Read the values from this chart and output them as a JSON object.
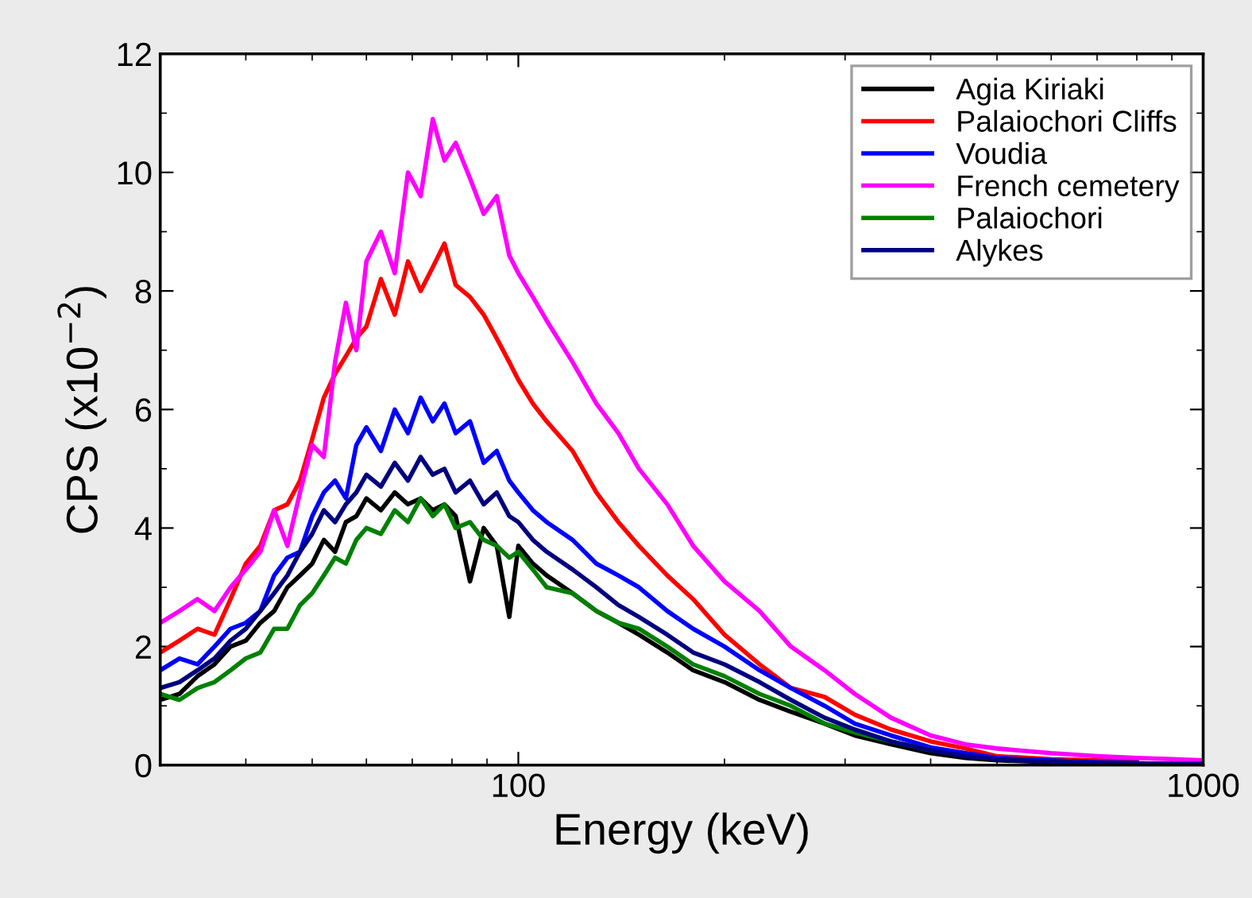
{
  "chart_data": {
    "type": "line",
    "xlabel": "Energy (keV)",
    "ylabel": "CPS (x10$^{−2}$)",
    "log": "x",
    "xlim": [
      30,
      1000
    ],
    "xticks": [
      100,
      1000
    ],
    "ylim": [
      0,
      12
    ],
    "yticks": [
      0,
      2,
      4,
      6,
      8,
      10,
      12
    ],
    "grid": false,
    "legend": "top right",
    "marker": "none",
    "line_style": "solid",
    "x": [
      30,
      32,
      34,
      36,
      38,
      40,
      42,
      44,
      46,
      48,
      50,
      52,
      54,
      56,
      58,
      60,
      63,
      66,
      69,
      72,
      75,
      78,
      81,
      85,
      89,
      93,
      97,
      100,
      105,
      110,
      120,
      130,
      140,
      150,
      165,
      180,
      200,
      225,
      250,
      280,
      310,
      350,
      400,
      450,
      500,
      600,
      700,
      800,
      900,
      1000
    ],
    "series": [
      {
        "name": "Agia Kiriaki",
        "color": "#000000",
        "values": [
          1.1,
          1.2,
          1.5,
          1.7,
          2.0,
          2.1,
          2.4,
          2.6,
          3.0,
          3.2,
          3.4,
          3.8,
          3.6,
          4.1,
          4.2,
          4.5,
          4.3,
          4.6,
          4.4,
          4.5,
          4.3,
          4.4,
          4.2,
          3.1,
          4.0,
          3.7,
          2.5,
          3.7,
          3.4,
          3.2,
          2.9,
          2.6,
          2.4,
          2.2,
          1.9,
          1.6,
          1.4,
          1.1,
          0.9,
          0.7,
          0.5,
          0.35,
          0.2,
          0.12,
          0.08,
          0.05,
          0.03,
          0.02,
          0.02,
          0.02
        ]
      },
      {
        "name": "Palaiochori Cliffs",
        "color": "#ff0000",
        "values": [
          1.9,
          2.1,
          2.3,
          2.2,
          2.8,
          3.4,
          3.7,
          4.3,
          4.4,
          4.8,
          5.5,
          6.2,
          6.6,
          6.9,
          7.2,
          7.4,
          8.2,
          7.6,
          8.5,
          8.0,
          8.4,
          8.8,
          8.1,
          7.9,
          7.6,
          7.2,
          6.8,
          6.5,
          6.1,
          5.8,
          5.3,
          4.6,
          4.1,
          3.7,
          3.2,
          2.8,
          2.2,
          1.7,
          1.3,
          1.15,
          0.85,
          0.6,
          0.4,
          0.28,
          0.15,
          0.1,
          0.08,
          0.06,
          null,
          null
        ]
      },
      {
        "name": "Voudia",
        "color": "#0000ff",
        "values": [
          1.6,
          1.8,
          1.7,
          2.0,
          2.3,
          2.4,
          2.6,
          3.2,
          3.5,
          3.6,
          4.2,
          4.6,
          4.8,
          4.5,
          5.4,
          5.7,
          5.3,
          6.0,
          5.6,
          6.2,
          5.8,
          6.1,
          5.6,
          5.8,
          5.1,
          5.3,
          4.8,
          4.6,
          4.3,
          4.1,
          3.8,
          3.4,
          3.2,
          3.0,
          2.6,
          2.3,
          2.0,
          1.6,
          1.3,
          1.0,
          0.7,
          0.5,
          0.3,
          0.2,
          0.12,
          0.08,
          0.05,
          0.04,
          null,
          null
        ]
      },
      {
        "name": "French cemetery",
        "color": "#ff00ff",
        "values": [
          2.4,
          2.6,
          2.8,
          2.6,
          3.0,
          3.3,
          3.6,
          4.3,
          3.7,
          4.6,
          5.4,
          5.2,
          6.8,
          7.8,
          7.0,
          8.5,
          9.0,
          8.3,
          10.0,
          9.6,
          10.9,
          10.2,
          10.5,
          9.9,
          9.3,
          9.6,
          8.6,
          8.3,
          7.9,
          7.5,
          6.8,
          6.1,
          5.6,
          5.0,
          4.4,
          3.7,
          3.1,
          2.6,
          2.0,
          1.6,
          1.2,
          0.8,
          0.5,
          0.35,
          0.28,
          0.2,
          0.15,
          0.12,
          0.1,
          0.08
        ]
      },
      {
        "name": "Palaiochori",
        "color": "#008000",
        "values": [
          1.2,
          1.1,
          1.3,
          1.4,
          1.6,
          1.8,
          1.9,
          2.3,
          2.3,
          2.7,
          2.9,
          3.2,
          3.5,
          3.4,
          3.8,
          4.0,
          3.9,
          4.3,
          4.1,
          4.5,
          4.2,
          4.4,
          4.0,
          4.1,
          3.8,
          3.7,
          3.5,
          3.6,
          3.3,
          3.0,
          2.9,
          2.6,
          2.4,
          2.3,
          2.0,
          1.7,
          1.5,
          1.2,
          1.0,
          0.7,
          0.55,
          0.4,
          0.25,
          null,
          null,
          null,
          null,
          null,
          null,
          null
        ]
      },
      {
        "name": "Alykes",
        "color": "#000080",
        "values": [
          1.3,
          1.4,
          1.6,
          1.8,
          2.1,
          2.3,
          2.6,
          2.9,
          3.2,
          3.6,
          3.9,
          4.3,
          4.1,
          4.4,
          4.6,
          4.9,
          4.7,
          5.1,
          4.8,
          5.2,
          4.9,
          5.0,
          4.6,
          4.8,
          4.4,
          4.6,
          4.2,
          4.1,
          3.8,
          3.6,
          3.3,
          3.0,
          2.7,
          2.5,
          2.2,
          1.9,
          1.7,
          1.4,
          1.1,
          0.8,
          0.6,
          0.4,
          0.25,
          0.15,
          0.1,
          0.06,
          0.04,
          0.03,
          0.02,
          0.02
        ]
      }
    ]
  }
}
